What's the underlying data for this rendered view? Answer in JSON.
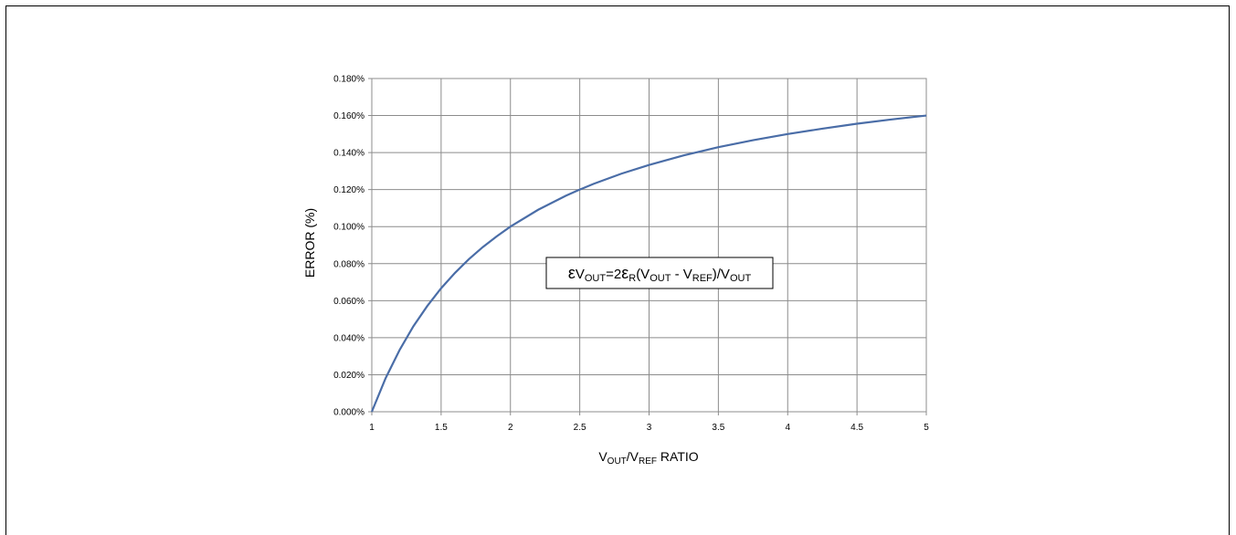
{
  "chart_data": {
    "type": "line",
    "xlabel": {
      "main1": "V",
      "sub1": "OUT",
      "main2": "/V",
      "sub2": "REF",
      "rest": " RATIO"
    },
    "ylabel": "ERROR (%)",
    "xlim": [
      1,
      5
    ],
    "ylim": [
      0,
      0.18
    ],
    "x_ticks": [
      "1",
      "1.5",
      "2",
      "2.5",
      "3",
      "3.5",
      "4",
      "4.5",
      "5"
    ],
    "y_ticks": [
      "0.000%",
      "0.020%",
      "0.040%",
      "0.060%",
      "0.080%",
      "0.100%",
      "0.120%",
      "0.140%",
      "0.160%",
      "0.180%"
    ],
    "grid": true,
    "line_color": "#4a6da7",
    "series": [
      {
        "x": [
          1.0,
          1.1,
          1.2,
          1.3,
          1.4,
          1.5,
          1.6,
          1.7,
          1.8,
          1.9,
          2.0,
          2.2,
          2.4,
          2.5,
          2.6,
          2.8,
          3.0,
          3.25,
          3.5,
          3.75,
          4.0,
          4.25,
          4.5,
          4.75,
          5.0
        ],
        "y": [
          0.0,
          0.0182,
          0.0333,
          0.0462,
          0.0571,
          0.0667,
          0.075,
          0.0824,
          0.0889,
          0.0947,
          0.1,
          0.1091,
          0.1167,
          0.12,
          0.1231,
          0.1286,
          0.1333,
          0.1385,
          0.1429,
          0.1467,
          0.15,
          0.1529,
          0.1556,
          0.1579,
          0.16
        ]
      }
    ],
    "annotation": {
      "t1": "ε",
      "t2": "V",
      "s1": "OUT",
      "t3": "=2",
      "t4": "ε",
      "s2": "R",
      "t5": "(V",
      "s3": "OUT",
      "t6": " - V",
      "s4": "REF",
      "t7": ")/V",
      "s5": "OUT"
    }
  }
}
